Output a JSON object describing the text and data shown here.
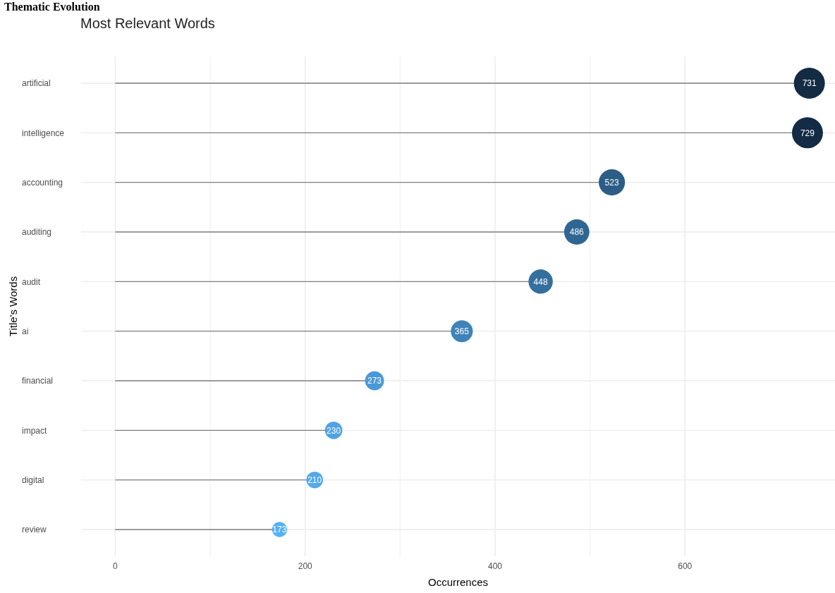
{
  "chart_data": {
    "type": "lollipop",
    "title": "Most Relevant Words",
    "annotations": [
      "Thematic Evolution"
    ],
    "xlabel": "Occurrences",
    "ylabel": "Title's Words",
    "orientation": "horizontal",
    "categories": [
      "artificial",
      "intelligence",
      "accounting",
      "auditing",
      "audit",
      "ai",
      "financial",
      "impact",
      "digital",
      "review"
    ],
    "values": [
      731,
      729,
      523,
      486,
      448,
      365,
      273,
      230,
      210,
      173
    ],
    "sizes": [
      1,
      0.997,
      0.715,
      0.665,
      0.613,
      0.499,
      0.373,
      0.315,
      0.287,
      0.237
    ],
    "colors": [
      "#132b43",
      "#132b44",
      "#2c5d86",
      "#306692",
      "#356f9e",
      "#3f83b9",
      "#4a99d7",
      "#4fa3e5",
      "#52a8eb",
      "#56b1f7"
    ],
    "xlim": [
      -36,
      758
    ],
    "xticks": [
      0,
      200,
      400,
      600
    ],
    "grid": true,
    "data_labels": true
  }
}
